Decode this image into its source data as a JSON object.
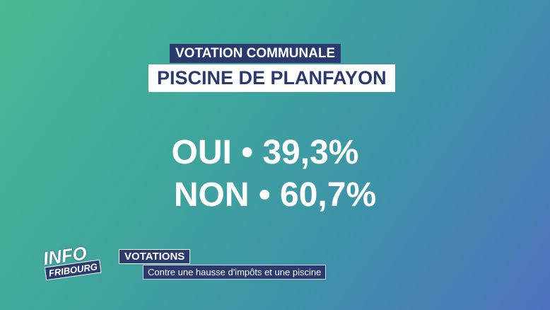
{
  "header": {
    "kicker": "VOTATION COMMUNALE",
    "title": "PISCINE DE PLANFAYON"
  },
  "results": [
    "OUI • 39,3%",
    "NON • 60,7%"
  ],
  "logo": {
    "line1": "INFO",
    "line2": "FRIBOURG"
  },
  "lower_third": {
    "section": "VOTATIONS",
    "subtitle": "Contre une hausse d'impôts et une piscine"
  }
}
